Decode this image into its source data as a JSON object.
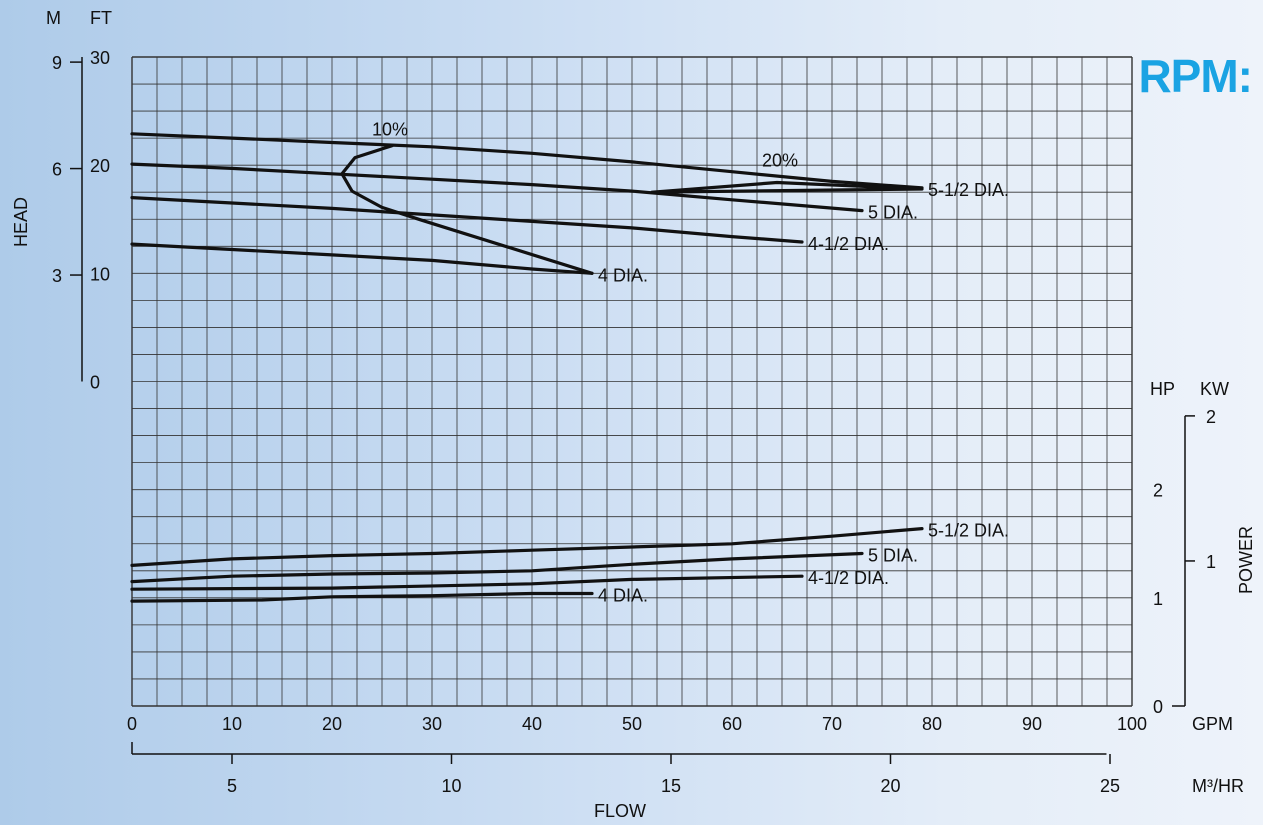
{
  "rpm_label": "RPM:",
  "colors": {
    "accent": "#1aa3e3",
    "grid": "#333333",
    "curve": "#111111"
  },
  "chart_data": {
    "type": "line",
    "title": "",
    "grid": true,
    "x_axis": {
      "label": "FLOW",
      "primary": {
        "unit": "GPM",
        "range": [
          0,
          100
        ],
        "ticks": [
          0,
          10,
          20,
          30,
          40,
          50,
          60,
          70,
          80,
          90,
          100
        ]
      },
      "secondary": {
        "unit": "M³/HR",
        "ticks": [
          5,
          10,
          15,
          20,
          25
        ]
      }
    },
    "head_axis": {
      "label": "HEAD",
      "unit_left": "M",
      "unit_right": "FT",
      "ft_range": [
        0,
        30
      ],
      "ft_ticks": [
        0,
        10,
        20,
        30
      ],
      "m_ticks": [
        3,
        6,
        9
      ]
    },
    "power_axis": {
      "label": "POWER",
      "unit_left": "HP",
      "unit_right": "KW",
      "hp_range": [
        0,
        3
      ],
      "hp_ticks": [
        0,
        1,
        2
      ],
      "kw_ticks": [
        1,
        2
      ]
    },
    "head_series": [
      {
        "name": "5-1/2 DIA.",
        "points": [
          [
            0,
            22.9
          ],
          [
            10,
            22.5
          ],
          [
            20,
            22.1
          ],
          [
            30,
            21.7
          ],
          [
            40,
            21.1
          ],
          [
            50,
            20.3
          ],
          [
            60,
            19.4
          ],
          [
            70,
            18.5
          ],
          [
            79,
            17.9
          ]
        ]
      },
      {
        "name": "5 DIA.",
        "points": [
          [
            0,
            20.1
          ],
          [
            10,
            19.7
          ],
          [
            20,
            19.2
          ],
          [
            30,
            18.7
          ],
          [
            40,
            18.2
          ],
          [
            50,
            17.6
          ],
          [
            60,
            16.8
          ],
          [
            73,
            15.8
          ]
        ]
      },
      {
        "name": "4-1/2 DIA.",
        "points": [
          [
            0,
            17.0
          ],
          [
            10,
            16.5
          ],
          [
            20,
            16.0
          ],
          [
            30,
            15.4
          ],
          [
            40,
            14.8
          ],
          [
            50,
            14.2
          ],
          [
            60,
            13.4
          ],
          [
            67,
            12.9
          ]
        ]
      },
      {
        "name": "4 DIA.",
        "points": [
          [
            0,
            12.7
          ],
          [
            10,
            12.2
          ],
          [
            20,
            11.7
          ],
          [
            30,
            11.2
          ],
          [
            40,
            10.4
          ],
          [
            46,
            10.0
          ]
        ]
      }
    ],
    "efficiency_series": [
      {
        "name": "10%",
        "points": [
          [
            26,
            21.8
          ],
          [
            22.3,
            20.7
          ],
          [
            21.0,
            19.2
          ],
          [
            22.0,
            17.6
          ],
          [
            25.0,
            16.1
          ],
          [
            29.0,
            14.9
          ],
          [
            46,
            10.0
          ]
        ]
      },
      {
        "name": "20%",
        "points": [
          [
            79,
            17.8
          ],
          [
            52,
            17.5
          ],
          [
            64.5,
            18.4
          ],
          [
            79,
            17.8
          ]
        ]
      }
    ],
    "power_series": [
      {
        "name": "5-1/2 DIA.",
        "points": [
          [
            0,
            1.3
          ],
          [
            10,
            1.36
          ],
          [
            20,
            1.39
          ],
          [
            30,
            1.41
          ],
          [
            40,
            1.44
          ],
          [
            50,
            1.47
          ],
          [
            60,
            1.5
          ],
          [
            70,
            1.57
          ],
          [
            79,
            1.64
          ]
        ]
      },
      {
        "name": "5 DIA.",
        "points": [
          [
            0,
            1.15
          ],
          [
            10,
            1.2
          ],
          [
            20,
            1.22
          ],
          [
            30,
            1.23
          ],
          [
            40,
            1.25
          ],
          [
            50,
            1.31
          ],
          [
            60,
            1.36
          ],
          [
            73,
            1.41
          ]
        ]
      },
      {
        "name": "4-1/2 DIA.",
        "points": [
          [
            0,
            1.08
          ],
          [
            20,
            1.09
          ],
          [
            40,
            1.13
          ],
          [
            50,
            1.17
          ],
          [
            67,
            1.2
          ]
        ]
      },
      {
        "name": "4 DIA.",
        "points": [
          [
            0,
            0.97
          ],
          [
            13,
            0.98
          ],
          [
            20,
            1.01
          ],
          [
            30,
            1.02
          ],
          [
            40,
            1.04
          ],
          [
            46,
            1.04
          ]
        ]
      }
    ]
  }
}
